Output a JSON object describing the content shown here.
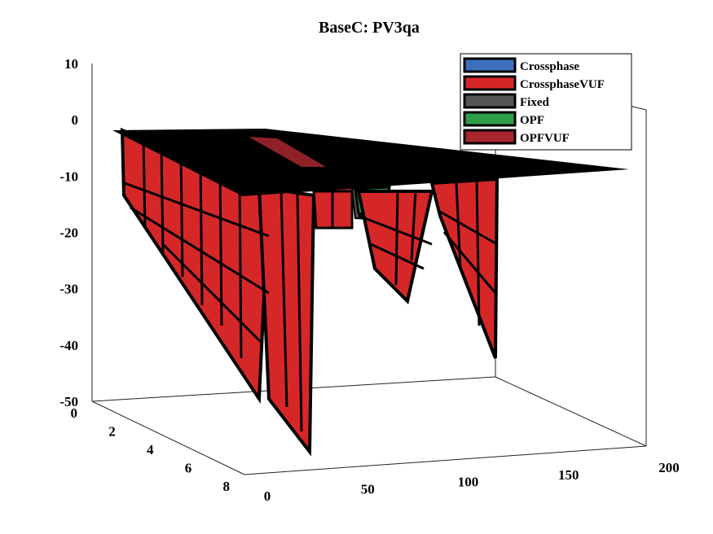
{
  "chart_data": {
    "type": "surface3d",
    "title": "BaseC: PV3qa",
    "xlabel": "",
    "ylabel": "",
    "zlabel": "",
    "xlim": [
      0,
      200
    ],
    "ylim": [
      0,
      8
    ],
    "zlim": [
      -50,
      10
    ],
    "x_ticks": [
      "0",
      "50",
      "100",
      "150",
      "200"
    ],
    "y_ticks": [
      "0",
      "2",
      "4",
      "6",
      "8"
    ],
    "z_ticks": [
      "10",
      "0",
      "-10",
      "-20",
      "-30",
      "-40",
      "-50"
    ],
    "legend_position": "top-right",
    "series": [
      {
        "name": "Crossphase",
        "color": "#3d6fbf"
      },
      {
        "name": "CrossphaseVUF",
        "color": "#d62728"
      },
      {
        "name": "Fixed",
        "color": "#555555"
      },
      {
        "name": "OPF",
        "color": "#2e9e48"
      },
      {
        "name": "OPFVUF",
        "color": "#a8262f"
      }
    ],
    "top_surface_value": 0,
    "min_value_estimate": -48
  }
}
